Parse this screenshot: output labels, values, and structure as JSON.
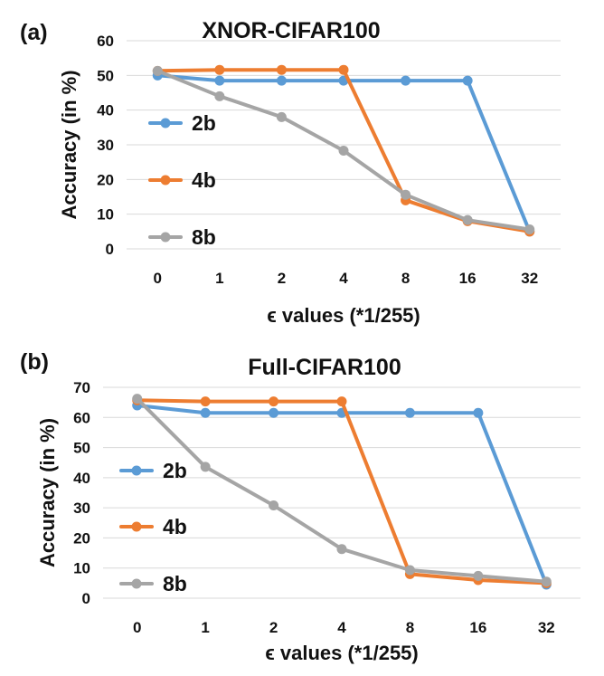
{
  "chart_data": [
    {
      "type": "line",
      "panel_label": "(a)",
      "title": "XNOR-CIFAR100",
      "xlabel": "ϵ values (*1/255)",
      "ylabel": "Accuracy (in %)",
      "categories": [
        "0",
        "1",
        "2",
        "4",
        "8",
        "16",
        "32"
      ],
      "ylim": [
        0,
        60
      ],
      "yticks": [
        0,
        10,
        20,
        30,
        40,
        50,
        60
      ],
      "grid": true,
      "legend_position": "left",
      "series": [
        {
          "name": "2b",
          "color": "#5b9bd5",
          "values": [
            50.0,
            48.5,
            48.5,
            48.5,
            48.5,
            48.5,
            5.0
          ]
        },
        {
          "name": "4b",
          "color": "#ed7d31",
          "values": [
            51.3,
            51.6,
            51.6,
            51.6,
            14.0,
            8.0,
            5.0
          ]
        },
        {
          "name": "8b",
          "color": "#a5a5a5",
          "values": [
            51.3,
            44.0,
            38.0,
            28.3,
            15.6,
            8.3,
            5.6
          ]
        }
      ]
    },
    {
      "type": "line",
      "panel_label": "(b)",
      "title": "Full-CIFAR100",
      "xlabel": "ϵ values (*1/255)",
      "ylabel": "Accuracy (in %)",
      "categories": [
        "0",
        "1",
        "2",
        "4",
        "8",
        "16",
        "32"
      ],
      "ylim": [
        0,
        70
      ],
      "yticks": [
        0,
        10,
        20,
        30,
        40,
        50,
        60,
        70
      ],
      "grid": true,
      "legend_position": "left",
      "series": [
        {
          "name": "2b",
          "color": "#5b9bd5",
          "values": [
            64.0,
            61.5,
            61.5,
            61.5,
            61.5,
            61.5,
            4.5
          ]
        },
        {
          "name": "4b",
          "color": "#ed7d31",
          "values": [
            65.7,
            65.3,
            65.3,
            65.3,
            8.0,
            6.0,
            5.0
          ]
        },
        {
          "name": "8b",
          "color": "#a5a5a5",
          "values": [
            66.2,
            43.6,
            30.8,
            16.3,
            9.3,
            7.4,
            5.5
          ]
        }
      ]
    }
  ]
}
